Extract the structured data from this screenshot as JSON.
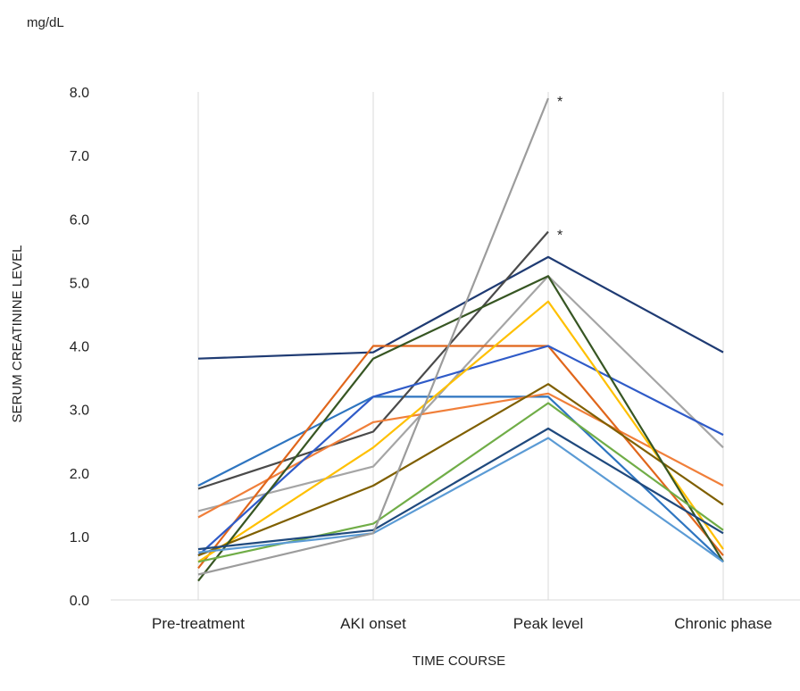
{
  "chart_data": {
    "type": "line",
    "title": "",
    "unit_label": "mg/dL",
    "ylabel": "SERUM CREATININE LEVEL",
    "xlabel": "TIME COURSE",
    "categories": [
      "Pre-treatment",
      "AKI onset",
      "Peak level",
      "Chronic phase"
    ],
    "ylim": [
      0,
      8
    ],
    "yticks": [
      "0.0",
      "1.0",
      "2.0",
      "3.0",
      "4.0",
      "5.0",
      "6.0",
      "7.0",
      "8.0"
    ],
    "grid": "vertical",
    "legend": "none",
    "series": [
      {
        "color": "#1f3b73",
        "values": [
          3.8,
          3.9,
          5.4,
          3.9
        ]
      },
      {
        "color": "#2e75c0",
        "values": [
          1.8,
          3.2,
          3.2,
          0.6
        ]
      },
      {
        "color": "#4a4a4a",
        "values": [
          1.75,
          2.65,
          5.8,
          null
        ]
      },
      {
        "color": "#a5a5a5",
        "values": [
          1.4,
          2.1,
          5.1,
          2.4
        ]
      },
      {
        "color": "#f07f3a",
        "values": [
          1.3,
          2.8,
          3.25,
          1.8
        ]
      },
      {
        "color": "#e0661b",
        "values": [
          0.5,
          4.0,
          4.0,
          0.7
        ]
      },
      {
        "color": "#2f5bc8",
        "values": [
          0.7,
          3.2,
          4.0,
          2.6
        ]
      },
      {
        "color": "#ffc000",
        "values": [
          0.6,
          2.4,
          4.7,
          0.8
        ]
      },
      {
        "color": "#7f5f00",
        "values": [
          0.7,
          1.8,
          3.4,
          1.5
        ]
      },
      {
        "color": "#375623",
        "values": [
          0.3,
          3.8,
          5.1,
          0.6
        ]
      },
      {
        "color": "#70ad47",
        "values": [
          0.6,
          1.2,
          3.1,
          1.1
        ]
      },
      {
        "color": "#1f497d",
        "values": [
          0.8,
          1.1,
          2.7,
          1.05
        ]
      },
      {
        "color": "#5b9bd5",
        "values": [
          0.75,
          1.05,
          2.55,
          0.6
        ]
      },
      {
        "color": "#9c9c9c",
        "values": [
          0.4,
          1.05,
          7.9,
          null
        ]
      }
    ],
    "annotations": [
      {
        "text": "*",
        "category": "Peak level",
        "value": 7.9
      },
      {
        "text": "*",
        "category": "Peak level",
        "value": 5.8
      }
    ]
  }
}
